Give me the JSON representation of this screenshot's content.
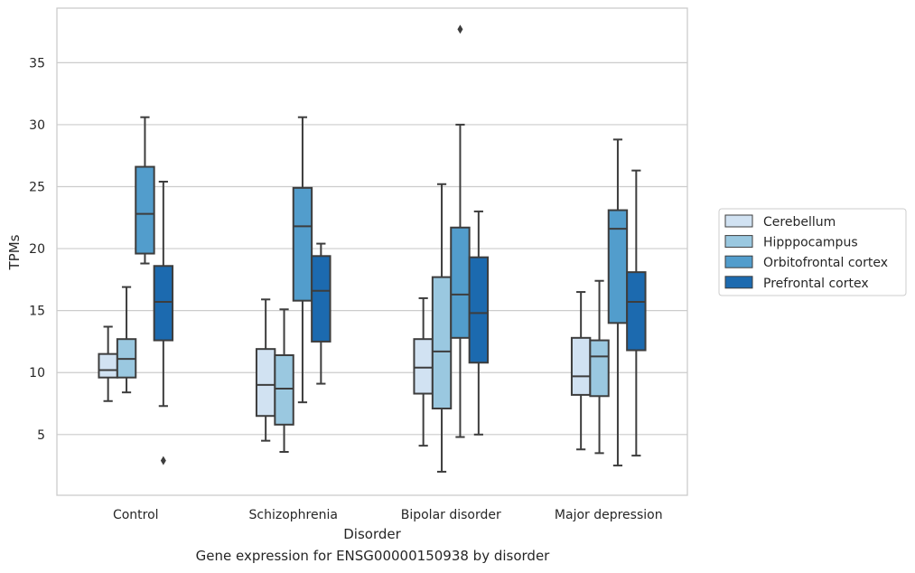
{
  "caption": "Gene expression for ENSG00000150938 by disorder",
  "chart_data": {
    "type": "box",
    "xlabel": "Disorder",
    "ylabel": "TPMs",
    "categories": [
      "Control",
      "Schizophrenia",
      "Bipolar disorder",
      "Major depression"
    ],
    "yticks": [
      5,
      10,
      15,
      20,
      25,
      30,
      35
    ],
    "ylim": [
      0.1,
      39.4
    ],
    "grid": true,
    "legend_position": "right",
    "series": [
      {
        "name": "Cerebellum",
        "color": "#d1e2f2",
        "boxes": [
          {
            "whisker_low": 7.7,
            "q1": 9.6,
            "median": 10.2,
            "q3": 11.5,
            "whisker_high": 13.7,
            "outliers": []
          },
          {
            "whisker_low": 4.5,
            "q1": 6.5,
            "median": 9.0,
            "q3": 11.9,
            "whisker_high": 15.9,
            "outliers": []
          },
          {
            "whisker_low": 4.1,
            "q1": 8.3,
            "median": 10.4,
            "q3": 12.7,
            "whisker_high": 16.0,
            "outliers": []
          },
          {
            "whisker_low": 3.8,
            "q1": 8.2,
            "median": 9.7,
            "q3": 12.8,
            "whisker_high": 16.5,
            "outliers": []
          }
        ]
      },
      {
        "name": "Hipppocampus",
        "color": "#9ac8e0",
        "boxes": [
          {
            "whisker_low": 8.4,
            "q1": 9.6,
            "median": 11.1,
            "q3": 12.7,
            "whisker_high": 16.9,
            "outliers": []
          },
          {
            "whisker_low": 3.6,
            "q1": 5.8,
            "median": 8.7,
            "q3": 11.4,
            "whisker_high": 15.1,
            "outliers": []
          },
          {
            "whisker_low": 2.0,
            "q1": 7.1,
            "median": 11.7,
            "q3": 17.7,
            "whisker_high": 25.2,
            "outliers": []
          },
          {
            "whisker_low": 3.5,
            "q1": 8.1,
            "median": 11.3,
            "q3": 12.6,
            "whisker_high": 17.4,
            "outliers": []
          }
        ]
      },
      {
        "name": "Orbitofrontal cortex",
        "color": "#529dcc",
        "boxes": [
          {
            "whisker_low": 18.8,
            "q1": 19.6,
            "median": 22.8,
            "q3": 26.6,
            "whisker_high": 30.6,
            "outliers": []
          },
          {
            "whisker_low": 7.6,
            "q1": 15.8,
            "median": 21.8,
            "q3": 24.9,
            "whisker_high": 30.6,
            "outliers": []
          },
          {
            "whisker_low": 4.8,
            "q1": 12.8,
            "median": 16.3,
            "q3": 21.7,
            "whisker_high": 30.0,
            "outliers": [
              37.7
            ]
          },
          {
            "whisker_low": 2.5,
            "q1": 14.0,
            "median": 21.6,
            "q3": 23.1,
            "whisker_high": 28.8,
            "outliers": []
          }
        ]
      },
      {
        "name": "Prefrontal cortex",
        "color": "#1c6aaf",
        "boxes": [
          {
            "whisker_low": 7.3,
            "q1": 12.6,
            "median": 15.7,
            "q3": 18.6,
            "whisker_high": 25.4,
            "outliers": [
              2.9
            ]
          },
          {
            "whisker_low": 9.1,
            "q1": 12.5,
            "median": 16.6,
            "q3": 19.4,
            "whisker_high": 20.4,
            "outliers": []
          },
          {
            "whisker_low": 5.0,
            "q1": 10.8,
            "median": 14.8,
            "q3": 19.3,
            "whisker_high": 23.0,
            "outliers": []
          },
          {
            "whisker_low": 3.3,
            "q1": 11.8,
            "median": 15.7,
            "q3": 18.1,
            "whisker_high": 26.3,
            "outliers": []
          }
        ]
      }
    ]
  }
}
